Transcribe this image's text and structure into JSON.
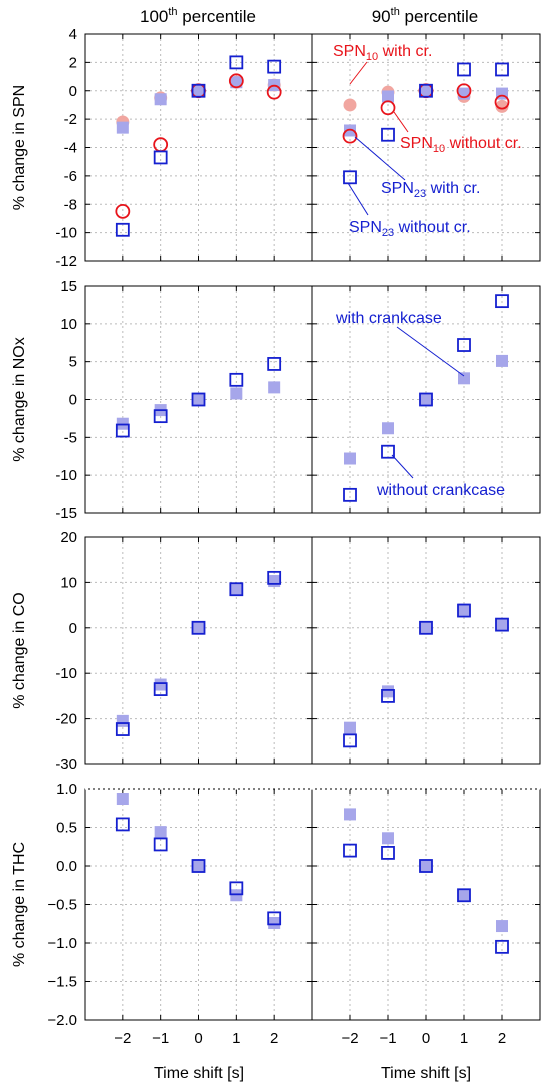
{
  "header": {
    "columns": [
      {
        "base": "100",
        "sup": "th",
        "rest": " percentile"
      },
      {
        "base": "90",
        "sup": "th",
        "rest": " percentile"
      }
    ]
  },
  "xlabel": "Time shift [s]",
  "xticks": [
    "−2",
    "−1",
    "0",
    "1",
    "2"
  ],
  "colors": {
    "red": "#e8141b",
    "red_light": "#f1a6a0",
    "blue": "#1520d0",
    "blue_light": "#a6a6ea",
    "grid": "#bbbbbb"
  },
  "chart_data": [
    {
      "type": "scatter",
      "ylabel": "% change in SPN",
      "ylim": [
        -12,
        4
      ],
      "yticks": [
        4,
        2,
        0,
        -2,
        -4,
        -6,
        -8,
        -10,
        -12
      ],
      "grid": true,
      "x": [
        -2,
        -1,
        0,
        1,
        2
      ],
      "left": {
        "series": [
          {
            "name": "SPN10 with cr.",
            "values": [
              -2.2,
              -0.5,
              0.0,
              0.6,
              0.4
            ]
          },
          {
            "name": "SPN23 with cr.",
            "values": [
              -2.6,
              -0.6,
              0.0,
              0.6,
              0.4
            ]
          },
          {
            "name": "SPN10 without cr.",
            "values": [
              -8.5,
              -3.8,
              0.0,
              0.7,
              -0.1
            ]
          },
          {
            "name": "SPN23 without cr.",
            "values": [
              -9.8,
              -4.7,
              0.0,
              2.0,
              1.7
            ]
          }
        ]
      },
      "right": {
        "series": [
          {
            "name": "SPN10 with cr.",
            "values": [
              -1.0,
              -0.1,
              0.0,
              -0.4,
              -1.1
            ]
          },
          {
            "name": "SPN23 with cr.",
            "values": [
              -2.8,
              -0.4,
              0.0,
              -0.2,
              -0.2
            ]
          },
          {
            "name": "SPN10 without cr.",
            "values": [
              -3.2,
              -1.2,
              0.0,
              0.0,
              -0.8
            ]
          },
          {
            "name": "SPN23 without cr.",
            "values": [
              -6.1,
              -3.1,
              0.0,
              1.5,
              1.5
            ]
          }
        ]
      },
      "annotations": [
        {
          "base": "SPN",
          "sub": "10",
          "rest": " with cr.",
          "color": "red"
        },
        {
          "base": "SPN",
          "sub": "10",
          "rest": " without cr.",
          "color": "red"
        },
        {
          "base": "SPN",
          "sub": "23",
          "rest": " with cr.",
          "color": "blue"
        },
        {
          "base": "SPN",
          "sub": "23",
          "rest": " without cr.",
          "color": "blue"
        }
      ]
    },
    {
      "type": "scatter",
      "ylabel": "% change in NOx",
      "ylim": [
        -15,
        15
      ],
      "yticks": [
        15,
        10,
        5,
        0,
        -5,
        -10,
        -15
      ],
      "grid": true,
      "x": [
        -2,
        -1,
        0,
        1,
        2
      ],
      "left": {
        "series": [
          {
            "name": "with crankcase",
            "values": [
              -3.2,
              -1.4,
              0.0,
              0.8,
              1.6
            ]
          },
          {
            "name": "without crankcase",
            "values": [
              -4.1,
              -2.2,
              0.0,
              2.6,
              4.7
            ]
          }
        ]
      },
      "right": {
        "series": [
          {
            "name": "with crankcase",
            "values": [
              -7.8,
              -3.8,
              0.0,
              2.8,
              5.1
            ]
          },
          {
            "name": "without crankcase",
            "values": [
              -12.6,
              -6.9,
              0.0,
              7.2,
              13.0
            ]
          }
        ]
      },
      "annotations": [
        {
          "text": "with crankcase",
          "color": "blue"
        },
        {
          "text": "without crankcase",
          "color": "blue"
        }
      ]
    },
    {
      "type": "scatter",
      "ylabel": "% change in CO",
      "ylim": [
        -30,
        20
      ],
      "yticks": [
        20,
        10,
        0,
        -10,
        -20,
        -30
      ],
      "grid": true,
      "x": [
        -2,
        -1,
        0,
        1,
        2
      ],
      "left": {
        "series": [
          {
            "name": "with crankcase",
            "values": [
              -20.5,
              -12.5,
              0.0,
              8.5,
              10.3
            ]
          },
          {
            "name": "without crankcase",
            "values": [
              -22.3,
              -13.5,
              0.0,
              8.5,
              11.0
            ]
          }
        ]
      },
      "right": {
        "series": [
          {
            "name": "with crankcase",
            "values": [
              -22.0,
              -14.0,
              0.0,
              4.0,
              0.8
            ]
          },
          {
            "name": "without crankcase",
            "values": [
              -24.8,
              -15.0,
              0.0,
              3.8,
              0.7
            ]
          }
        ]
      },
      "annotations": []
    },
    {
      "type": "scatter",
      "ylabel": "% change in THC",
      "ylim": [
        -2.0,
        1.0
      ],
      "yticks": [
        "1.0",
        "0.5",
        "0.0",
        "−0.5",
        "−1.0",
        "−1.5",
        "−2.0"
      ],
      "grid": true,
      "x": [
        -2,
        -1,
        0,
        1,
        2
      ],
      "left": {
        "series": [
          {
            "name": "with crankcase",
            "values": [
              0.87,
              0.44,
              0.0,
              -0.38,
              -0.74
            ]
          },
          {
            "name": "without crankcase",
            "values": [
              0.54,
              0.28,
              0.0,
              -0.29,
              -0.68
            ]
          }
        ]
      },
      "right": {
        "series": [
          {
            "name": "with crankcase",
            "values": [
              0.67,
              0.36,
              0.0,
              -0.38,
              -0.78
            ]
          },
          {
            "name": "without crankcase",
            "values": [
              0.2,
              0.17,
              0.0,
              -0.38,
              -1.05
            ]
          }
        ]
      },
      "annotations": []
    }
  ]
}
